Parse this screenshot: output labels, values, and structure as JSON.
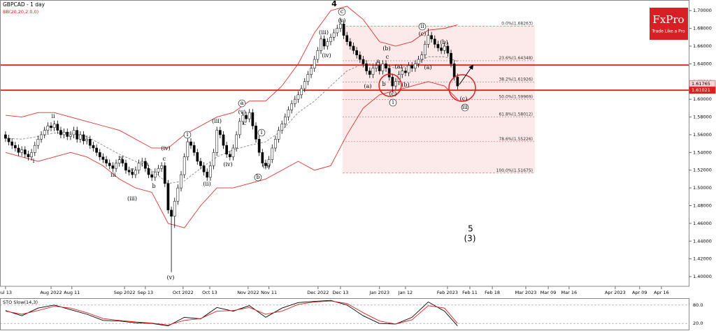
{
  "chart_data": [
    {
      "type": "candlestick",
      "title": "GBPCAD - 1 day",
      "subtitle": "BB(20,20,2.0,0)",
      "up_color": "#ffffff",
      "down_color": "#000000",
      "band_color": "#e03030",
      "mid_color": "#888888",
      "level_color": "#e02020",
      "fib_color": "#e06060",
      "open": [
        1.56,
        1.556,
        1.552,
        1.548,
        1.545,
        1.54,
        1.543,
        1.538,
        1.535,
        1.54,
        1.548,
        1.555,
        1.56,
        1.565,
        1.57,
        1.568,
        1.572,
        1.565,
        1.56,
        1.563,
        1.558,
        1.56,
        1.565,
        1.555,
        1.56,
        1.553,
        1.555,
        1.548,
        1.545,
        1.54,
        1.535,
        1.532,
        1.528,
        1.525,
        1.522,
        1.528,
        1.532,
        1.528,
        1.52,
        1.518,
        1.515,
        1.52,
        1.528,
        1.53,
        1.522,
        1.515,
        1.512,
        1.518,
        1.522,
        1.525,
        1.505,
        1.475,
        1.468,
        1.485,
        1.5,
        1.515,
        1.535,
        1.552,
        1.548,
        1.54,
        1.53,
        1.525,
        1.518,
        1.512,
        1.525,
        1.54,
        1.565,
        1.56,
        1.548,
        1.538,
        1.535,
        1.545,
        1.56,
        1.575,
        1.582,
        1.578,
        1.585,
        1.57,
        1.555,
        1.54,
        1.528,
        1.525,
        1.532,
        1.545,
        1.555,
        1.565,
        1.572,
        1.58,
        1.588,
        1.595,
        1.6,
        1.605,
        1.612,
        1.62,
        1.628,
        1.635,
        1.645,
        1.655,
        1.668,
        1.66,
        1.665,
        1.67,
        1.675,
        1.68,
        1.685,
        1.672,
        1.665,
        1.66,
        1.655,
        1.65,
        1.645,
        1.64,
        1.632,
        1.628,
        1.635,
        1.638,
        1.632,
        1.64,
        1.635,
        1.625,
        1.615,
        1.62,
        1.628,
        1.632,
        1.63,
        1.638,
        1.635,
        1.64,
        1.645,
        1.65,
        1.662,
        1.672,
        1.668,
        1.662,
        1.658,
        1.655,
        1.66,
        1.652,
        1.64,
        1.625
      ],
      "high": [
        1.564,
        1.56,
        1.556,
        1.552,
        1.549,
        1.547,
        1.547,
        1.542,
        1.544,
        1.552,
        1.559,
        1.564,
        1.569,
        1.574,
        1.574,
        1.576,
        1.576,
        1.569,
        1.567,
        1.567,
        1.564,
        1.569,
        1.569,
        1.564,
        1.564,
        1.559,
        1.559,
        1.552,
        1.549,
        1.544,
        1.539,
        1.536,
        1.532,
        1.529,
        1.532,
        1.536,
        1.536,
        1.532,
        1.524,
        1.522,
        1.524,
        1.532,
        1.534,
        1.534,
        1.526,
        1.519,
        1.522,
        1.526,
        1.529,
        1.529,
        1.509,
        1.479,
        1.489,
        1.504,
        1.519,
        1.539,
        1.556,
        1.556,
        1.552,
        1.544,
        1.534,
        1.529,
        1.522,
        1.529,
        1.544,
        1.569,
        1.569,
        1.564,
        1.552,
        1.542,
        1.549,
        1.564,
        1.579,
        1.586,
        1.586,
        1.589,
        1.589,
        1.574,
        1.559,
        1.544,
        1.532,
        1.536,
        1.549,
        1.559,
        1.569,
        1.576,
        1.584,
        1.592,
        1.599,
        1.604,
        1.609,
        1.616,
        1.624,
        1.632,
        1.639,
        1.649,
        1.659,
        1.672,
        1.672,
        1.669,
        1.674,
        1.679,
        1.684,
        1.692,
        1.689,
        1.676,
        1.669,
        1.664,
        1.659,
        1.654,
        1.649,
        1.644,
        1.636,
        1.639,
        1.642,
        1.642,
        1.644,
        1.644,
        1.639,
        1.629,
        1.624,
        1.632,
        1.636,
        1.636,
        1.642,
        1.642,
        1.644,
        1.649,
        1.654,
        1.666,
        1.68,
        1.676,
        1.672,
        1.666,
        1.662,
        1.664,
        1.664,
        1.656,
        1.644,
        1.629
      ],
      "low": [
        1.552,
        1.548,
        1.544,
        1.541,
        1.536,
        1.536,
        1.534,
        1.531,
        1.531,
        1.536,
        1.544,
        1.551,
        1.556,
        1.561,
        1.564,
        1.564,
        1.561,
        1.556,
        1.556,
        1.554,
        1.554,
        1.556,
        1.551,
        1.551,
        1.549,
        1.549,
        1.544,
        1.541,
        1.536,
        1.531,
        1.528,
        1.524,
        1.521,
        1.518,
        1.518,
        1.524,
        1.524,
        1.516,
        1.514,
        1.511,
        1.511,
        1.516,
        1.524,
        1.518,
        1.511,
        1.508,
        1.508,
        1.514,
        1.518,
        1.501,
        1.471,
        1.405,
        1.455,
        1.481,
        1.496,
        1.511,
        1.531,
        1.544,
        1.536,
        1.526,
        1.521,
        1.514,
        1.508,
        1.508,
        1.521,
        1.536,
        1.556,
        1.544,
        1.534,
        1.531,
        1.531,
        1.541,
        1.556,
        1.571,
        1.574,
        1.574,
        1.566,
        1.551,
        1.536,
        1.524,
        1.521,
        1.521,
        1.528,
        1.541,
        1.551,
        1.561,
        1.568,
        1.576,
        1.584,
        1.591,
        1.596,
        1.601,
        1.608,
        1.616,
        1.624,
        1.631,
        1.641,
        1.651,
        1.656,
        1.656,
        1.661,
        1.666,
        1.671,
        1.676,
        1.668,
        1.661,
        1.656,
        1.651,
        1.646,
        1.641,
        1.636,
        1.628,
        1.624,
        1.624,
        1.631,
        1.628,
        1.628,
        1.631,
        1.621,
        1.608,
        1.611,
        1.616,
        1.624,
        1.626,
        1.626,
        1.631,
        1.631,
        1.636,
        1.641,
        1.646,
        1.658,
        1.664,
        1.658,
        1.654,
        1.651,
        1.651,
        1.648,
        1.636,
        1.621,
        1.611
      ],
      "close": [
        1.556,
        1.552,
        1.548,
        1.545,
        1.54,
        1.543,
        1.538,
        1.535,
        1.54,
        1.548,
        1.555,
        1.56,
        1.565,
        1.57,
        1.568,
        1.572,
        1.565,
        1.56,
        1.563,
        1.558,
        1.56,
        1.565,
        1.555,
        1.56,
        1.553,
        1.555,
        1.548,
        1.545,
        1.54,
        1.535,
        1.532,
        1.528,
        1.525,
        1.522,
        1.528,
        1.532,
        1.528,
        1.52,
        1.518,
        1.515,
        1.52,
        1.528,
        1.53,
        1.522,
        1.515,
        1.512,
        1.518,
        1.522,
        1.525,
        1.505,
        1.475,
        1.468,
        1.485,
        1.5,
        1.515,
        1.535,
        1.552,
        1.548,
        1.54,
        1.53,
        1.525,
        1.518,
        1.512,
        1.525,
        1.54,
        1.565,
        1.56,
        1.548,
        1.538,
        1.535,
        1.545,
        1.56,
        1.575,
        1.582,
        1.578,
        1.585,
        1.57,
        1.555,
        1.54,
        1.528,
        1.525,
        1.532,
        1.545,
        1.555,
        1.565,
        1.572,
        1.58,
        1.588,
        1.595,
        1.6,
        1.605,
        1.612,
        1.62,
        1.628,
        1.635,
        1.645,
        1.655,
        1.668,
        1.66,
        1.665,
        1.67,
        1.675,
        1.68,
        1.685,
        1.672,
        1.665,
        1.66,
        1.655,
        1.65,
        1.645,
        1.64,
        1.632,
        1.628,
        1.635,
        1.638,
        1.632,
        1.64,
        1.635,
        1.625,
        1.615,
        1.62,
        1.628,
        1.632,
        1.63,
        1.638,
        1.635,
        1.64,
        1.645,
        1.65,
        1.662,
        1.672,
        1.668,
        1.662,
        1.658,
        1.655,
        1.66,
        1.652,
        1.64,
        1.625,
        1.615
      ],
      "bb_x": [
        0,
        5,
        10,
        15,
        20,
        25,
        30,
        35,
        40,
        45,
        50,
        55,
        60,
        65,
        70,
        75,
        80,
        85,
        90,
        95,
        100,
        105,
        110,
        115,
        120,
        125,
        130,
        135,
        139
      ],
      "bb_upper": [
        1.582,
        1.58,
        1.585,
        1.585,
        1.58,
        1.575,
        1.57,
        1.565,
        1.555,
        1.545,
        1.545,
        1.56,
        1.57,
        1.58,
        1.585,
        1.598,
        1.598,
        1.615,
        1.64,
        1.675,
        1.7,
        1.705,
        1.69,
        1.665,
        1.66,
        1.665,
        1.678,
        1.68,
        1.684
      ],
      "bb_middle": [
        1.556,
        1.555,
        1.558,
        1.562,
        1.562,
        1.558,
        1.548,
        1.538,
        1.53,
        1.52,
        1.505,
        1.508,
        1.522,
        1.535,
        1.543,
        1.548,
        1.552,
        1.565,
        1.585,
        1.598,
        1.615,
        1.632,
        1.64,
        1.64,
        1.635,
        1.638,
        1.648,
        1.648,
        1.643
      ],
      "bb_lower": [
        1.54,
        1.535,
        1.53,
        1.535,
        1.54,
        1.535,
        1.525,
        1.51,
        1.5,
        1.495,
        1.46,
        1.455,
        1.48,
        1.5,
        1.5,
        1.505,
        1.51,
        1.52,
        1.53,
        1.52,
        1.525,
        1.56,
        1.59,
        1.605,
        1.61,
        1.615,
        1.62,
        1.615,
        1.6
      ],
      "xlim": [
        -1.7,
        210.1
      ],
      "xticks": [
        {
          "value": 0,
          "label": "Jul 13"
        },
        {
          "value": 14,
          "label": "Aug 2022"
        },
        {
          "value": 20.4,
          "label": "Aug 11"
        },
        {
          "value": 36.6,
          "label": "Sep 2022"
        },
        {
          "value": 43,
          "label": "Sep 13"
        },
        {
          "value": 54.6,
          "label": "Oct 2022"
        },
        {
          "value": 62.8,
          "label": "Oct 13"
        },
        {
          "value": 74.6,
          "label": "Nov 2022"
        },
        {
          "value": 81,
          "label": "Nov 11"
        },
        {
          "value": 96.1,
          "label": "Dec 2022"
        },
        {
          "value": 103,
          "label": "Dec 13"
        },
        {
          "value": 115,
          "label": "Jan 2023"
        },
        {
          "value": 123,
          "label": "Jan 12"
        },
        {
          "value": 135.9,
          "label": "Feb 2023"
        },
        {
          "value": 142.8,
          "label": "Feb 11"
        },
        {
          "value": 149.7,
          "label": "Feb 18"
        },
        {
          "value": 160,
          "label": "Mar 2023"
        },
        {
          "value": 166.9,
          "label": "Mar 09"
        },
        {
          "value": 173.3,
          "label": "Mar 16"
        },
        {
          "value": 187.5,
          "label": "Apr 2023"
        },
        {
          "value": 195,
          "label": "Apr 09"
        },
        {
          "value": 201.7,
          "label": "Apr 16"
        }
      ],
      "ylim": [
        1.389,
        1.712
      ],
      "yticks": [
        {
          "value": 1.4,
          "label": "1.40000"
        },
        {
          "value": 1.42,
          "label": "1.42000"
        },
        {
          "value": 1.44,
          "label": "1.44000"
        },
        {
          "value": 1.46,
          "label": "1.46000"
        },
        {
          "value": 1.48,
          "label": "1.48000"
        },
        {
          "value": 1.5,
          "label": "1.50000"
        },
        {
          "value": 1.52,
          "label": "1.52000"
        },
        {
          "value": 1.54,
          "label": "1.54000"
        },
        {
          "value": 1.56,
          "label": "1.56000"
        },
        {
          "value": 1.58,
          "label": "1.58000"
        },
        {
          "value": 1.6,
          "label": "1.60000"
        },
        {
          "value": 1.62,
          "label": "1.62000"
        },
        {
          "value": 1.64,
          "label": "1.64000"
        },
        {
          "value": 1.66,
          "label": "1.66000"
        },
        {
          "value": 1.68,
          "label": "1.68000"
        },
        {
          "value": 1.7,
          "label": "1.70000"
        }
      ],
      "levels": [
        1.6386,
        1.61021
      ],
      "price_markers": [
        1.61765,
        1.61021
      ],
      "fib_levels": [
        {
          "value": 1.68263,
          "label": "0.0%(1.68263)"
        },
        {
          "value": 1.64348,
          "label": "23.6%(1.64348)"
        },
        {
          "value": 1.61926,
          "label": "38.2%(1.61926)"
        },
        {
          "value": 1.59969,
          "label": "50.0%(1.59969)"
        },
        {
          "value": 1.58012,
          "label": "61.8%(1.58012)"
        },
        {
          "value": 1.55226,
          "label": "78.6%(1.55226)"
        },
        {
          "value": 1.51675,
          "label": "100.0%(1.51675)"
        }
      ],
      "annotations": [
        "4",
        "c",
        "(v)",
        "(iii)",
        "(iv)",
        "a",
        "c",
        "(b)",
        "(a)",
        "b",
        "(c)",
        "i",
        "(a)",
        "(b)",
        "ii",
        "(c)",
        "(b)",
        "(a)",
        "(c)",
        "iii",
        "5",
        "(3)",
        "ii",
        "i",
        "iv",
        "iii",
        "v",
        "a",
        "b",
        "(iii)",
        "c",
        "(iv)",
        "(v)",
        "i",
        "(ii)",
        "(iii)",
        "(iv)",
        "a",
        "(v)",
        "c",
        "i",
        "b",
        "(ii)"
      ]
    },
    {
      "type": "line",
      "title": "STO Slow(14,3)",
      "x": [
        0,
        5,
        10,
        15,
        20,
        25,
        30,
        35,
        40,
        45,
        50,
        55,
        60,
        65,
        70,
        75,
        80,
        85,
        90,
        95,
        100,
        105,
        110,
        115,
        120,
        125,
        130,
        135,
        139
      ],
      "series": [
        {
          "color": "#000000",
          "values": [
            62,
            45,
            70,
            80,
            65,
            50,
            30,
            28,
            22,
            20,
            12,
            40,
            35,
            72,
            60,
            78,
            40,
            70,
            88,
            92,
            95,
            80,
            45,
            20,
            18,
            40,
            90,
            60,
            12
          ]
        },
        {
          "color": "#e02020",
          "values": [
            60,
            50,
            62,
            76,
            70,
            55,
            36,
            30,
            25,
            21,
            15,
            30,
            36,
            60,
            62,
            72,
            50,
            60,
            82,
            90,
            93,
            85,
            55,
            28,
            18,
            32,
            78,
            70,
            20
          ]
        }
      ],
      "ylim": [
        0,
        100
      ],
      "yticks": [
        {
          "value": 80,
          "label": "80.0"
        },
        {
          "value": 20,
          "label": "20.0"
        }
      ]
    }
  ],
  "brand": {
    "name": "FxPro",
    "tagline": "Trade Like a Pro"
  }
}
